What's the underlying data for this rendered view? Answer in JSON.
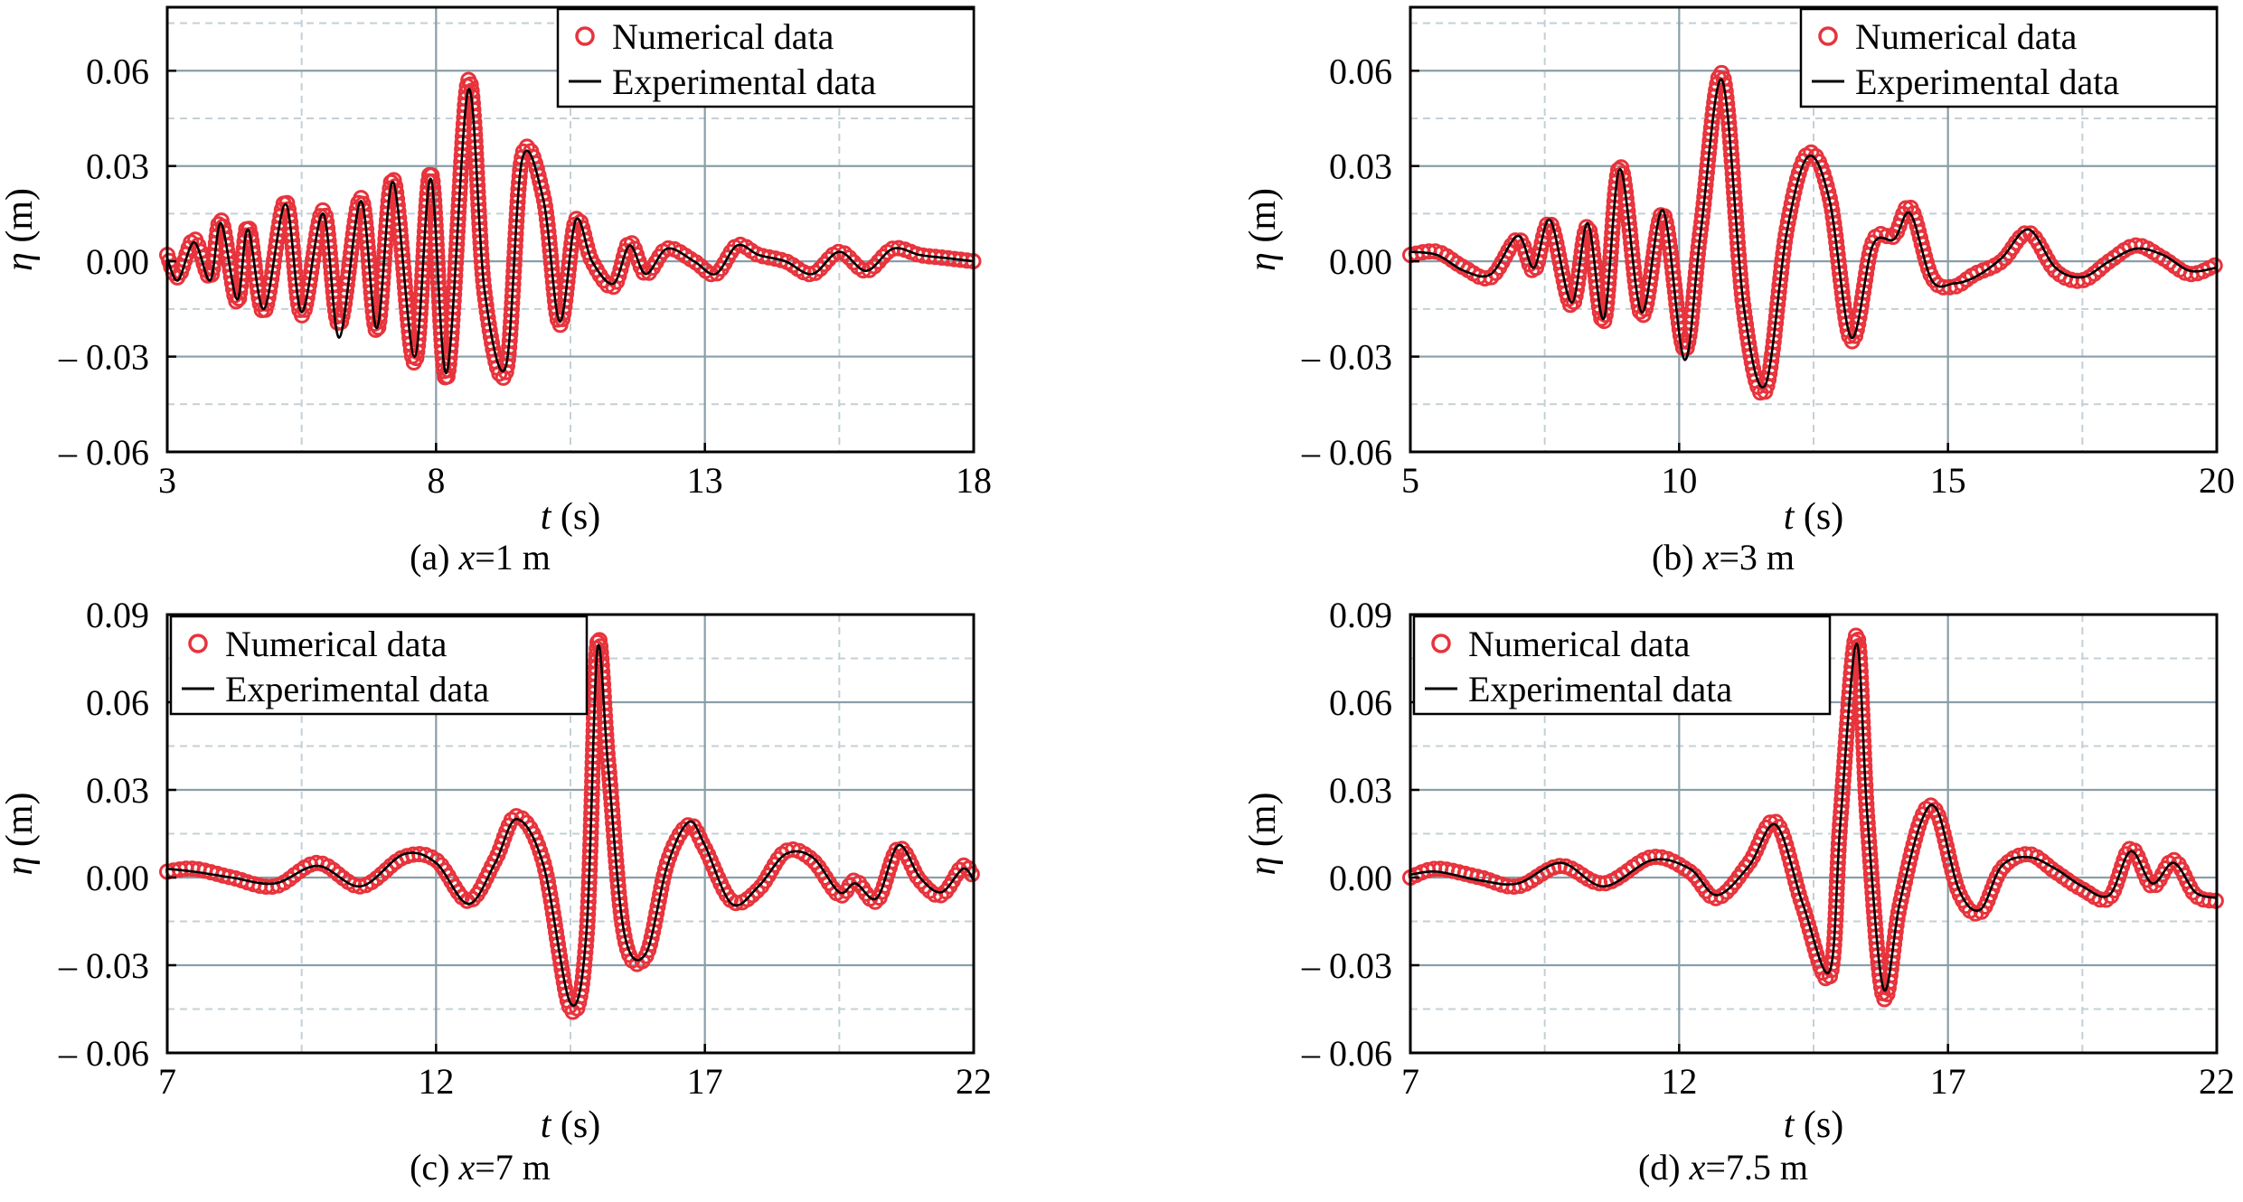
{
  "figure": {
    "legend_labels": {
      "numerical": "Numerical data",
      "experimental": "Experimental data"
    },
    "colors": {
      "numerical": "#e8333c",
      "experimental": "#000000",
      "grid_major": "#8a9ea8",
      "grid_minor": "#c4d0d6"
    }
  },
  "chart_data": [
    {
      "id": "a",
      "type": "line",
      "caption": {
        "prefix": "(a) ",
        "var": "x",
        "suffix": "=1 m"
      },
      "xlabel": {
        "var": "t",
        "unit": " (s)"
      },
      "ylabel": {
        "var": "η",
        "unit": " (m)"
      },
      "xlim": [
        3,
        18
      ],
      "ylim": [
        -0.06,
        0.08
      ],
      "xticks": [
        3,
        8,
        13,
        18
      ],
      "yticks": [
        -0.06,
        -0.03,
        0.0,
        0.03,
        0.06
      ],
      "ytick_labels": [
        "– 0.06",
        "– 0.03",
        "0.00",
        "0.03",
        "0.06"
      ],
      "legend_position": "top-right",
      "grid": true,
      "series": [
        {
          "name": "Numerical data",
          "style": "markers",
          "x": [
            3.0,
            3.2,
            3.5,
            3.8,
            4.0,
            4.3,
            4.5,
            4.8,
            5.2,
            5.5,
            5.9,
            6.2,
            6.6,
            6.9,
            7.2,
            7.6,
            7.9,
            8.2,
            8.6,
            8.9,
            9.3,
            9.6,
            10.0,
            10.3,
            10.6,
            10.9,
            11.3,
            11.6,
            11.9,
            12.3,
            12.8,
            13.2,
            13.6,
            14.0,
            14.5,
            15.0,
            15.5,
            16.0,
            16.5,
            17.0,
            17.5,
            18.0
          ],
          "y": [
            0.002,
            -0.005,
            0.007,
            -0.005,
            0.013,
            -0.013,
            0.011,
            -0.016,
            0.019,
            -0.017,
            0.016,
            -0.02,
            0.02,
            -0.022,
            0.026,
            -0.032,
            0.028,
            -0.037,
            0.057,
            -0.01,
            -0.035,
            0.033,
            0.02,
            -0.02,
            0.013,
            0.0,
            -0.008,
            0.006,
            -0.004,
            0.004,
            0.0,
            -0.004,
            0.005,
            0.002,
            0.0,
            -0.004,
            0.003,
            -0.003,
            0.004,
            0.002,
            0.001,
            0.0
          ]
        },
        {
          "name": "Experimental data",
          "style": "line",
          "x": [
            3.0,
            3.2,
            3.5,
            3.8,
            4.0,
            4.3,
            4.5,
            4.8,
            5.2,
            5.5,
            5.9,
            6.2,
            6.6,
            6.9,
            7.2,
            7.6,
            7.9,
            8.2,
            8.6,
            8.9,
            9.3,
            9.6,
            10.0,
            10.3,
            10.6,
            10.9,
            11.3,
            11.6,
            11.9,
            12.3,
            12.8,
            13.2,
            13.6,
            14.0,
            14.5,
            15.0,
            15.5,
            16.0,
            16.5,
            17.0,
            17.5,
            18.0
          ],
          "y": [
            0.001,
            -0.006,
            0.006,
            -0.006,
            0.012,
            -0.012,
            0.01,
            -0.015,
            0.018,
            -0.016,
            0.015,
            -0.024,
            0.019,
            -0.021,
            0.025,
            -0.03,
            0.026,
            -0.035,
            0.054,
            -0.009,
            -0.033,
            0.032,
            0.019,
            -0.019,
            0.013,
            0.0,
            -0.007,
            0.005,
            -0.004,
            0.004,
            0.0,
            -0.004,
            0.005,
            0.002,
            0.0,
            -0.004,
            0.003,
            -0.003,
            0.004,
            0.002,
            0.001,
            0.0
          ]
        }
      ]
    },
    {
      "id": "b",
      "type": "line",
      "caption": {
        "prefix": "(b) ",
        "var": "x",
        "suffix": "=3 m"
      },
      "xlabel": {
        "var": "t",
        "unit": " (s)"
      },
      "ylabel": {
        "var": "η",
        "unit": " (m)"
      },
      "xlim": [
        5,
        20
      ],
      "ylim": [
        -0.06,
        0.08
      ],
      "xticks": [
        5,
        10,
        15,
        20
      ],
      "yticks": [
        -0.06,
        -0.03,
        0.0,
        0.03,
        0.06
      ],
      "ytick_labels": [
        "– 0.06",
        "– 0.03",
        "0.00",
        "0.03",
        "0.06"
      ],
      "legend_position": "top-right",
      "grid": true,
      "series": [
        {
          "name": "Numerical data",
          "style": "markers",
          "x": [
            5.0,
            5.5,
            6.0,
            6.5,
            7.0,
            7.3,
            7.6,
            8.0,
            8.3,
            8.6,
            8.9,
            9.3,
            9.7,
            10.1,
            10.4,
            10.8,
            11.2,
            11.6,
            12.0,
            12.4,
            12.8,
            13.2,
            13.6,
            14.0,
            14.3,
            14.7,
            15.1,
            15.5,
            16.0,
            16.5,
            17.0,
            17.5,
            18.0,
            18.5,
            19.0,
            19.5,
            20.0
          ],
          "y": [
            0.002,
            0.003,
            -0.002,
            -0.005,
            0.007,
            -0.003,
            0.012,
            -0.014,
            0.011,
            -0.019,
            0.03,
            -0.017,
            0.015,
            -0.028,
            0.01,
            0.059,
            -0.015,
            -0.041,
            0.01,
            0.034,
            0.02,
            -0.025,
            0.006,
            0.008,
            0.017,
            -0.005,
            -0.008,
            -0.004,
            0.0,
            0.009,
            -0.003,
            -0.006,
            0.0,
            0.005,
            0.001,
            -0.004,
            -0.001
          ]
        },
        {
          "name": "Experimental data",
          "style": "line",
          "x": [
            5.0,
            5.5,
            6.0,
            6.5,
            7.0,
            7.3,
            7.6,
            8.0,
            8.3,
            8.6,
            8.9,
            9.3,
            9.7,
            10.1,
            10.4,
            10.8,
            11.2,
            11.6,
            12.0,
            12.4,
            12.8,
            13.2,
            13.6,
            14.0,
            14.3,
            14.7,
            15.1,
            15.5,
            16.0,
            16.5,
            17.0,
            17.5,
            18.0,
            18.5,
            19.0,
            19.5,
            20.0
          ],
          "y": [
            0.003,
            0.002,
            -0.003,
            -0.004,
            0.008,
            -0.002,
            0.013,
            -0.013,
            0.012,
            -0.018,
            0.029,
            -0.016,
            0.016,
            -0.031,
            0.009,
            0.057,
            -0.014,
            -0.039,
            0.009,
            0.033,
            0.019,
            -0.024,
            0.005,
            0.007,
            0.015,
            -0.006,
            -0.007,
            -0.005,
            0.001,
            0.01,
            -0.002,
            -0.005,
            0.0,
            0.004,
            0.002,
            -0.003,
            -0.002
          ]
        }
      ]
    },
    {
      "id": "c",
      "type": "line",
      "caption": {
        "prefix": "(c) ",
        "var": "x",
        "suffix": "=7 m"
      },
      "xlabel": {
        "var": "t",
        "unit": " (s)"
      },
      "ylabel": {
        "var": "η",
        "unit": " (m)"
      },
      "xlim": [
        7,
        22
      ],
      "ylim": [
        -0.06,
        0.09
      ],
      "xticks": [
        7,
        12,
        17,
        22
      ],
      "yticks": [
        -0.06,
        -0.03,
        0.0,
        0.03,
        0.06,
        0.09
      ],
      "ytick_labels": [
        "– 0.06",
        "– 0.03",
        "0.00",
        "0.03",
        "0.06",
        "0.09"
      ],
      "legend_position": "top-left",
      "grid": true,
      "series": [
        {
          "name": "Numerical data",
          "style": "markers",
          "x": [
            7.0,
            7.5,
            8.2,
            9.0,
            9.8,
            10.6,
            11.4,
            12.0,
            12.6,
            13.1,
            13.5,
            14.0,
            14.5,
            14.8,
            15.0,
            15.2,
            15.5,
            15.9,
            16.3,
            16.7,
            17.0,
            17.5,
            18.0,
            18.5,
            19.0,
            19.5,
            19.8,
            20.2,
            20.6,
            21.0,
            21.4,
            21.8,
            22.0
          ],
          "y": [
            0.002,
            0.003,
            0.0,
            -0.003,
            0.005,
            -0.003,
            0.007,
            0.006,
            -0.008,
            0.006,
            0.021,
            0.005,
            -0.045,
            -0.02,
            0.08,
            0.04,
            -0.02,
            -0.027,
            0.005,
            0.018,
            0.01,
            -0.008,
            -0.004,
            0.009,
            0.006,
            -0.006,
            -0.001,
            -0.008,
            0.01,
            -0.001,
            -0.006,
            0.004,
            0.0
          ]
        },
        {
          "name": "Experimental data",
          "style": "line",
          "x": [
            7.0,
            7.5,
            8.2,
            9.0,
            9.8,
            10.6,
            11.4,
            12.0,
            12.6,
            13.1,
            13.5,
            14.0,
            14.5,
            14.8,
            15.0,
            15.2,
            15.5,
            15.9,
            16.3,
            16.7,
            17.0,
            17.5,
            18.0,
            18.5,
            19.0,
            19.5,
            19.8,
            20.2,
            20.6,
            21.0,
            21.4,
            21.8,
            22.0
          ],
          "y": [
            0.003,
            0.002,
            0.0,
            -0.002,
            0.004,
            -0.003,
            0.008,
            0.005,
            -0.009,
            0.005,
            0.02,
            0.004,
            -0.043,
            -0.018,
            0.078,
            0.038,
            -0.019,
            -0.026,
            0.004,
            0.019,
            0.011,
            -0.009,
            -0.003,
            0.008,
            0.007,
            -0.005,
            -0.002,
            -0.007,
            0.011,
            0.0,
            -0.005,
            0.003,
            -0.001
          ]
        }
      ]
    },
    {
      "id": "d",
      "type": "line",
      "caption": {
        "prefix": "(d) ",
        "var": "x",
        "suffix": "=7.5 m"
      },
      "xlabel": {
        "var": "t",
        "unit": " (s)"
      },
      "ylabel": {
        "var": "η",
        "unit": " (m)"
      },
      "xlim": [
        7,
        22
      ],
      "ylim": [
        -0.06,
        0.09
      ],
      "xticks": [
        7,
        12,
        17,
        22
      ],
      "yticks": [
        -0.06,
        -0.03,
        0.0,
        0.03,
        0.06,
        0.09
      ],
      "ytick_labels": [
        "– 0.06",
        "– 0.03",
        "0.00",
        "0.03",
        "0.06",
        "0.09"
      ],
      "legend_position": "top-left",
      "grid": true,
      "series": [
        {
          "name": "Numerical data",
          "style": "markers",
          "x": [
            7.0,
            7.5,
            8.3,
            9.0,
            9.8,
            10.6,
            11.5,
            12.2,
            12.7,
            13.3,
            13.8,
            14.3,
            14.8,
            15.0,
            15.3,
            15.5,
            15.8,
            16.1,
            16.5,
            16.8,
            17.2,
            17.6,
            18.0,
            18.5,
            19.0,
            19.5,
            20.0,
            20.4,
            20.8,
            21.2,
            21.6,
            22.0
          ],
          "y": [
            0.0,
            0.003,
            0.0,
            -0.003,
            0.004,
            -0.002,
            0.007,
            0.002,
            -0.007,
            0.005,
            0.019,
            -0.01,
            -0.034,
            0.02,
            0.083,
            0.02,
            -0.041,
            -0.01,
            0.02,
            0.022,
            -0.005,
            -0.012,
            0.003,
            0.008,
            0.002,
            -0.004,
            -0.007,
            0.01,
            -0.003,
            0.006,
            -0.006,
            -0.008
          ]
        },
        {
          "name": "Experimental data",
          "style": "line",
          "x": [
            7.0,
            7.5,
            8.3,
            9.0,
            9.8,
            10.6,
            11.5,
            12.2,
            12.7,
            13.3,
            13.8,
            14.3,
            14.8,
            15.0,
            15.3,
            15.5,
            15.8,
            16.1,
            16.5,
            16.8,
            17.2,
            17.6,
            18.0,
            18.5,
            19.0,
            19.5,
            20.0,
            20.4,
            20.8,
            21.2,
            21.6,
            22.0
          ],
          "y": [
            0.001,
            0.002,
            -0.001,
            -0.002,
            0.005,
            -0.003,
            0.006,
            0.003,
            -0.006,
            0.004,
            0.018,
            -0.009,
            -0.032,
            0.019,
            0.08,
            0.021,
            -0.038,
            -0.009,
            0.019,
            0.023,
            -0.004,
            -0.011,
            0.004,
            0.007,
            0.003,
            -0.003,
            -0.006,
            0.009,
            -0.002,
            0.005,
            -0.005,
            -0.007
          ]
        }
      ]
    }
  ]
}
